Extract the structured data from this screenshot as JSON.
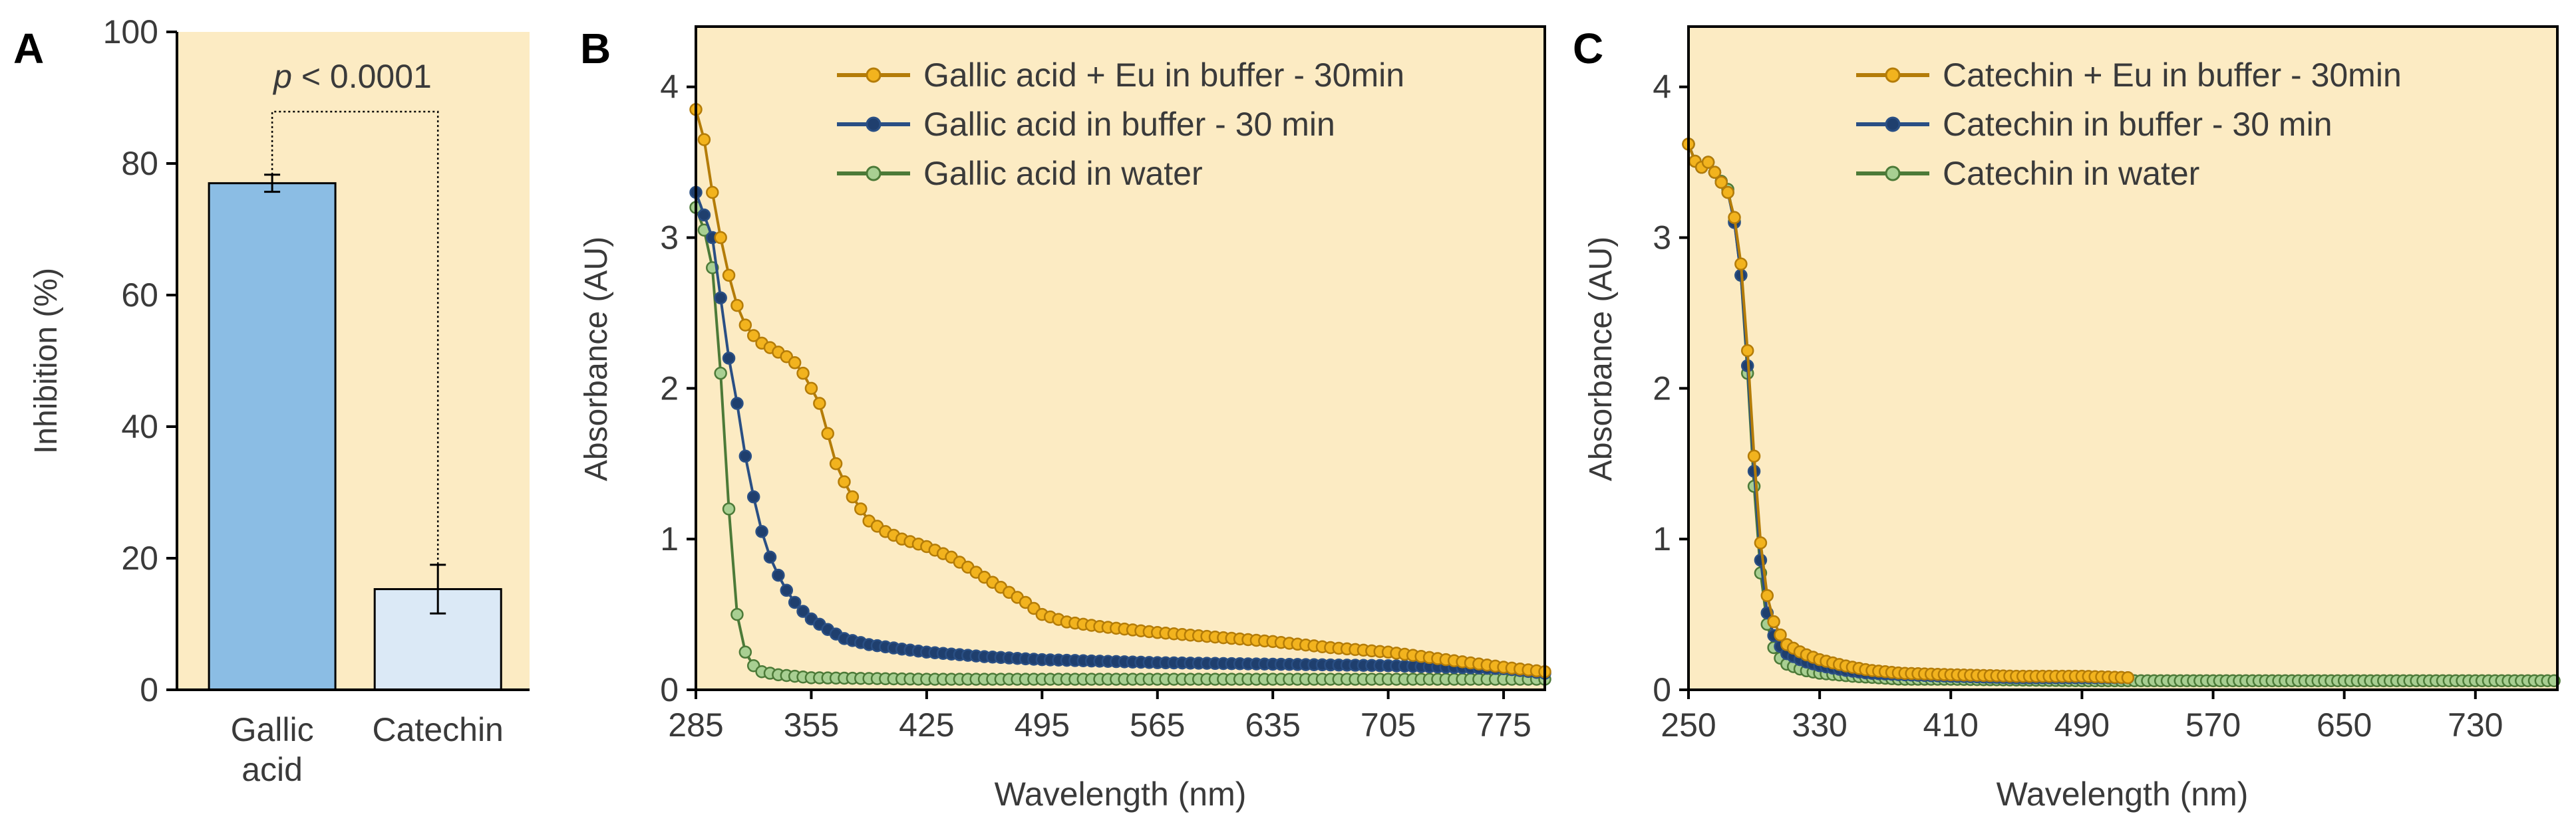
{
  "colors": {
    "plot_bg": "#fcebc3",
    "axis": "#000000",
    "text": "#3a3a3a",
    "bar_gallic": "#8bbde4",
    "bar_catechin": "#dbe9f6",
    "series_eu": "#b47c08",
    "series_eu_marker": "#f2b31e",
    "series_buffer": "#2a4f84",
    "series_buffer_marker": "#1f3f6e",
    "series_water": "#4c7a38",
    "series_water_marker": "#a8cf92"
  },
  "chart_data": [
    {
      "panel": "A",
      "type": "bar",
      "ylabel": "Inhibition  (%)",
      "xlabel": "",
      "ylim": [
        0,
        100
      ],
      "yticks": [
        "0",
        "20",
        "40",
        "60",
        "80",
        "100"
      ],
      "categories": [
        "Gallic acid",
        "Catechin"
      ],
      "category_lines": [
        [
          "Gallic",
          "acid"
        ],
        [
          "Catechin"
        ]
      ],
      "values": [
        77,
        15.3
      ],
      "errors": [
        1.3,
        3.7
      ],
      "significance": {
        "p_prefix": "p",
        "p_text": " < 0.0001"
      },
      "grid": false
    },
    {
      "panel": "B",
      "type": "line",
      "xlabel": "Wavelength  (nm)",
      "ylabel": "Absorbance  (AU)",
      "xlim": [
        285,
        800
      ],
      "ylim": [
        0,
        4.4
      ],
      "xticks": [
        "285",
        "355",
        "425",
        "495",
        "565",
        "635",
        "705",
        "775"
      ],
      "yticks": [
        "0",
        "1",
        "2",
        "3",
        "4"
      ],
      "legend": "top-right",
      "grid": false,
      "series": [
        {
          "name": "Gallic acid + Eu in buffer  - 30min",
          "key": "eu",
          "points": [
            [
              285,
              3.85
            ],
            [
              290,
              3.65
            ],
            [
              295,
              3.3
            ],
            [
              300,
              3.0
            ],
            [
              305,
              2.75
            ],
            [
              310,
              2.55
            ],
            [
              315,
              2.42
            ],
            [
              320,
              2.35
            ],
            [
              325,
              2.3
            ],
            [
              330,
              2.27
            ],
            [
              335,
              2.24
            ],
            [
              340,
              2.21
            ],
            [
              345,
              2.17
            ],
            [
              350,
              2.1
            ],
            [
              355,
              2.0
            ],
            [
              360,
              1.9
            ],
            [
              365,
              1.7
            ],
            [
              370,
              1.5
            ],
            [
              375,
              1.38
            ],
            [
              380,
              1.28
            ],
            [
              385,
              1.2
            ],
            [
              390,
              1.12
            ],
            [
              400,
              1.05
            ],
            [
              410,
              1.0
            ],
            [
              425,
              0.95
            ],
            [
              440,
              0.88
            ],
            [
              455,
              0.78
            ],
            [
              470,
              0.68
            ],
            [
              485,
              0.58
            ],
            [
              495,
              0.5
            ],
            [
              510,
              0.45
            ],
            [
              530,
              0.42
            ],
            [
              565,
              0.38
            ],
            [
              600,
              0.35
            ],
            [
              635,
              0.32
            ],
            [
              670,
              0.28
            ],
            [
              705,
              0.25
            ],
            [
              740,
              0.2
            ],
            [
              775,
              0.15
            ],
            [
              800,
              0.12
            ]
          ]
        },
        {
          "name": "Gallic acid in buffer  - 30 min",
          "key": "buffer",
          "points": [
            [
              285,
              3.3
            ],
            [
              290,
              3.15
            ],
            [
              295,
              3.0
            ],
            [
              300,
              2.6
            ],
            [
              305,
              2.2
            ],
            [
              310,
              1.9
            ],
            [
              315,
              1.55
            ],
            [
              320,
              1.28
            ],
            [
              325,
              1.05
            ],
            [
              330,
              0.88
            ],
            [
              335,
              0.76
            ],
            [
              340,
              0.66
            ],
            [
              345,
              0.58
            ],
            [
              350,
              0.52
            ],
            [
              355,
              0.47
            ],
            [
              365,
              0.4
            ],
            [
              375,
              0.34
            ],
            [
              390,
              0.3
            ],
            [
              410,
              0.27
            ],
            [
              425,
              0.25
            ],
            [
              460,
              0.22
            ],
            [
              495,
              0.2
            ],
            [
              565,
              0.18
            ],
            [
              635,
              0.17
            ],
            [
              705,
              0.16
            ],
            [
              775,
              0.14
            ],
            [
              800,
              0.11
            ]
          ]
        },
        {
          "name": "Gallic acid in water",
          "key": "water",
          "points": [
            [
              285,
              3.2
            ],
            [
              290,
              3.05
            ],
            [
              295,
              2.8
            ],
            [
              300,
              2.1
            ],
            [
              305,
              1.2
            ],
            [
              310,
              0.5
            ],
            [
              315,
              0.25
            ],
            [
              320,
              0.16
            ],
            [
              325,
              0.12
            ],
            [
              335,
              0.1
            ],
            [
              355,
              0.08
            ],
            [
              425,
              0.07
            ],
            [
              495,
              0.07
            ],
            [
              565,
              0.07
            ],
            [
              635,
              0.07
            ],
            [
              705,
              0.07
            ],
            [
              775,
              0.07
            ],
            [
              800,
              0.07
            ]
          ]
        }
      ]
    },
    {
      "panel": "C",
      "type": "line",
      "xlabel": "Wavelength  (nm)",
      "ylabel": "Absorbance  (AU)",
      "xlim": [
        250,
        780
      ],
      "ylim": [
        0,
        4.4
      ],
      "xticks": [
        "250",
        "330",
        "410",
        "490",
        "570",
        "650",
        "730"
      ],
      "yticks": [
        "0",
        "1",
        "2",
        "3",
        "4"
      ],
      "legend": "top-right",
      "grid": false,
      "series": [
        {
          "name": "Catechin  + Eu in buffer  - 30min",
          "key": "eu",
          "points": [
            [
              250,
              3.62
            ],
            [
              256,
              3.45
            ],
            [
              262,
              3.5
            ],
            [
              268,
              3.4
            ],
            [
              274,
              3.3
            ],
            [
              280,
              3.05
            ],
            [
              284,
              2.6
            ],
            [
              288,
              1.9
            ],
            [
              292,
              1.2
            ],
            [
              296,
              0.75
            ],
            [
              300,
              0.5
            ],
            [
              305,
              0.38
            ],
            [
              310,
              0.3
            ],
            [
              320,
              0.24
            ],
            [
              330,
              0.2
            ],
            [
              345,
              0.16
            ],
            [
              360,
              0.13
            ],
            [
              380,
              0.11
            ],
            [
              410,
              0.1
            ],
            [
              450,
              0.09
            ],
            [
              490,
              0.09
            ],
            [
              520,
              0.08
            ]
          ]
        },
        {
          "name": "Catechin  in buffer  - 30 min",
          "key": "buffer",
          "points": [
            [
              250,
              3.62
            ],
            [
              256,
              3.45
            ],
            [
              262,
              3.5
            ],
            [
              268,
              3.4
            ],
            [
              274,
              3.3
            ],
            [
              280,
              3.0
            ],
            [
              284,
              2.5
            ],
            [
              288,
              1.8
            ],
            [
              292,
              1.1
            ],
            [
              296,
              0.62
            ],
            [
              300,
              0.4
            ],
            [
              305,
              0.3
            ],
            [
              310,
              0.24
            ],
            [
              320,
              0.19
            ],
            [
              330,
              0.16
            ],
            [
              345,
              0.13
            ],
            [
              360,
              0.11
            ],
            [
              380,
              0.1
            ],
            [
              410,
              0.09
            ],
            [
              450,
              0.08
            ],
            [
              490,
              0.08
            ],
            [
              520,
              0.08
            ]
          ]
        },
        {
          "name": "Catechin  in water",
          "key": "water",
          "points": [
            [
              250,
              3.62
            ],
            [
              256,
              3.45
            ],
            [
              262,
              3.5
            ],
            [
              268,
              3.4
            ],
            [
              274,
              3.32
            ],
            [
              280,
              3.0
            ],
            [
              284,
              2.5
            ],
            [
              288,
              1.7
            ],
            [
              292,
              1.0
            ],
            [
              296,
              0.55
            ],
            [
              300,
              0.32
            ],
            [
              305,
              0.22
            ],
            [
              310,
              0.17
            ],
            [
              320,
              0.13
            ],
            [
              330,
              0.11
            ],
            [
              350,
              0.09
            ],
            [
              380,
              0.07
            ],
            [
              410,
              0.07
            ],
            [
              490,
              0.06
            ],
            [
              570,
              0.06
            ],
            [
              650,
              0.06
            ],
            [
              730,
              0.06
            ],
            [
              780,
              0.06
            ]
          ]
        }
      ]
    }
  ]
}
